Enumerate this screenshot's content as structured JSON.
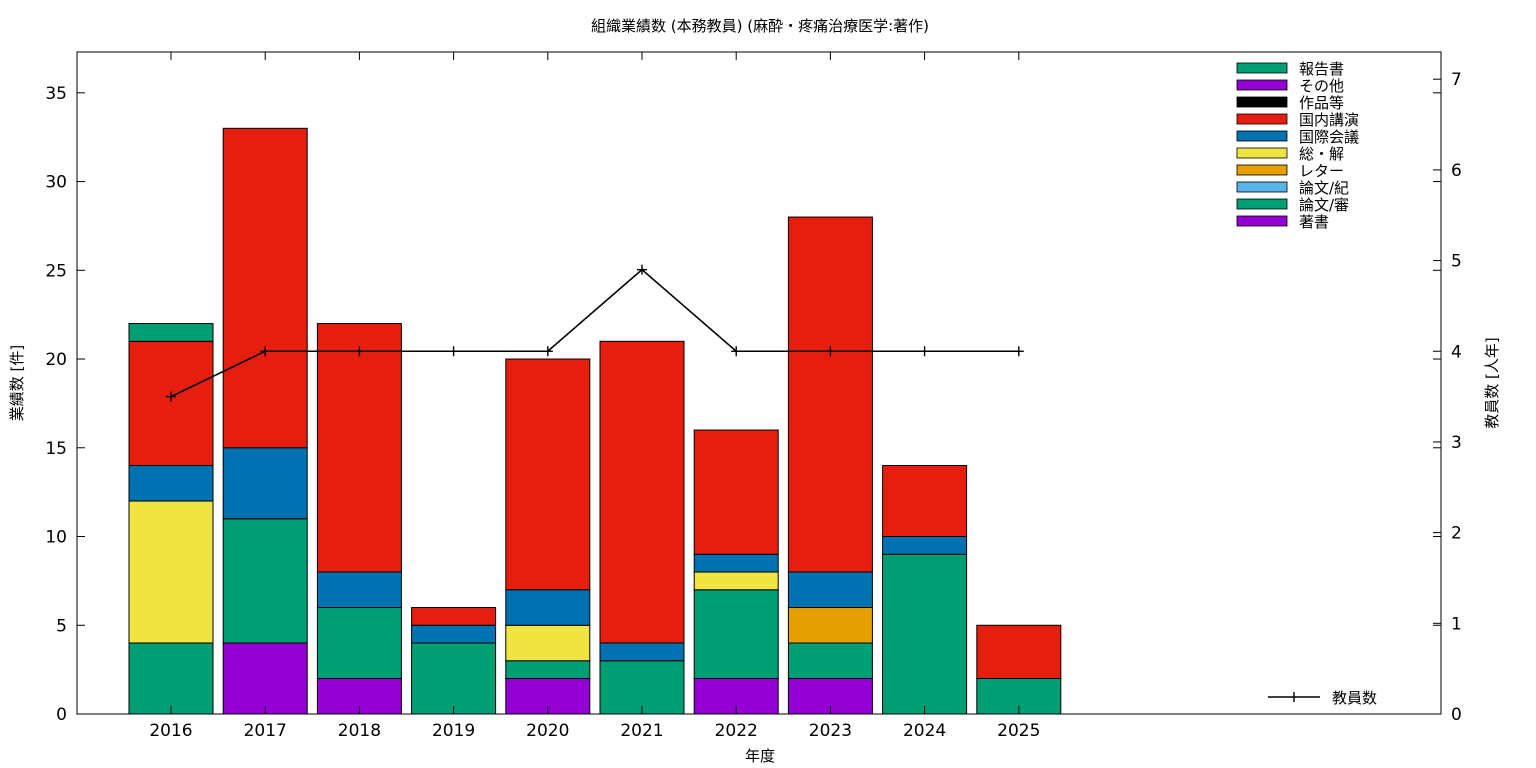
{
  "chart_data": {
    "type": "bar",
    "stacked": true,
    "title": "組織業績数 (本務教員) (麻酔・疼痛治療医学:著作)",
    "xlabel": "年度",
    "ylabel": "業績数 [件]",
    "y2label": "教員数 [人年]",
    "categories": [
      "2016",
      "2017",
      "2018",
      "2019",
      "2020",
      "2021",
      "2022",
      "2023",
      "2024",
      "2025"
    ],
    "ylim": [
      0,
      37.3
    ],
    "yticks": [
      0,
      5,
      10,
      15,
      20,
      25,
      30,
      35
    ],
    "y2lim": [
      0,
      7.3
    ],
    "y2ticks": [
      0,
      1,
      2,
      3,
      4,
      5,
      6,
      7
    ],
    "grid": false,
    "legend_position": "top-right",
    "series": [
      {
        "name": "著書",
        "color": "#9400D3",
        "values": [
          0,
          4,
          2,
          0,
          2,
          0,
          2,
          2,
          0,
          0
        ]
      },
      {
        "name": "論文/審",
        "color": "#009E73",
        "values": [
          4,
          7,
          4,
          4,
          1,
          3,
          5,
          2,
          9,
          2
        ]
      },
      {
        "name": "論文/紀",
        "color": "#56B4E9",
        "values": [
          0,
          0,
          0,
          0,
          0,
          0,
          0,
          0,
          0,
          0
        ]
      },
      {
        "name": "レター",
        "color": "#E69F00",
        "values": [
          0,
          0,
          0,
          0,
          0,
          0,
          0,
          2,
          0,
          0
        ]
      },
      {
        "name": "総・解",
        "color": "#F0E442",
        "values": [
          8,
          0,
          0,
          0,
          2,
          0,
          1,
          0,
          0,
          0
        ]
      },
      {
        "name": "国際会議",
        "color": "#0072B2",
        "values": [
          2,
          4,
          2,
          1,
          2,
          1,
          1,
          2,
          1,
          0
        ]
      },
      {
        "name": "国内講演",
        "color": "#E51E10",
        "values": [
          7,
          18,
          14,
          1,
          13,
          17,
          7,
          20,
          4,
          3
        ]
      },
      {
        "name": "作品等",
        "color": "#000000",
        "values": [
          0,
          0,
          0,
          0,
          0,
          0,
          0,
          0,
          0,
          0
        ]
      },
      {
        "name": "その他",
        "color": "#9400D3",
        "values": [
          0,
          0,
          0,
          0,
          0,
          0,
          0,
          0,
          0,
          0
        ]
      },
      {
        "name": "報告書",
        "color": "#009E73",
        "values": [
          1,
          0,
          0,
          0,
          0,
          0,
          0,
          0,
          0,
          0
        ]
      }
    ],
    "line": {
      "name": "教員数",
      "color": "#000000",
      "axis": "y2",
      "values": [
        3.5,
        4,
        4,
        4,
        4,
        4.9,
        4,
        4,
        4,
        4
      ]
    }
  }
}
